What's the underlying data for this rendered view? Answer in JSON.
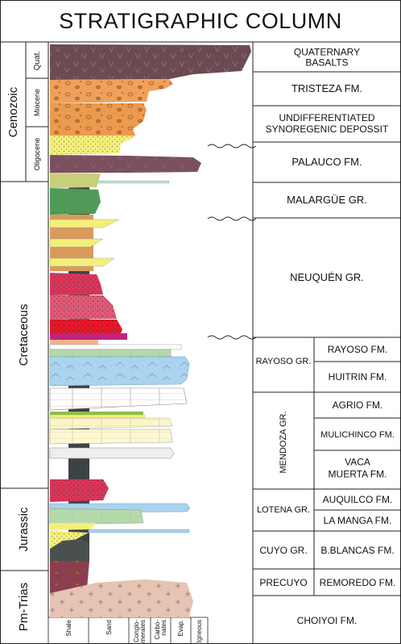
{
  "title": "STRATIGRAPHIC COLUMN",
  "eras": {
    "cenozoic": "Cenozoic",
    "cretaceous": "Cretaceous",
    "jurassic": "Jurassic",
    "pmtrias": "Pm-Trias"
  },
  "epochs": {
    "quat": "Quat.",
    "miocene": "Miocene",
    "oligocene": "Oligocene"
  },
  "lithology_legend": [
    "Shale",
    "Sand",
    "Conglo-\nmerates",
    "Carbo-\nnates",
    "Evap.",
    "Igneous"
  ],
  "groups": {
    "rayoso": "RAYOSO GR.",
    "mendoza": "MENDOZA GR.",
    "lotena": "LOTENA GR.",
    "cuyo": "CUYO GR.",
    "precuyo": "PRECUYO"
  },
  "formations": {
    "quaternary": "QUATERNARY\nBASALTS",
    "tristeza": "TRISTEZA FM.",
    "undiff": "UNDIFFERENTIATED\nSYNOREGENIC DEPOSSIT",
    "palauco": "PALAUCO FM.",
    "malargue": "MALARGÜE GR.",
    "neuquen": "NEUQUÉN GR.",
    "rayoso_fm": "RAYOSO FM.",
    "huitrin": "HUITRIN FM.",
    "agrio": "AGRIO FM.",
    "mulichinco": "MULICHINCO FM.",
    "vaca": "VACA\nMUERTA FM.",
    "auquilco": "AUQUILCO FM.",
    "lamanga": "LA MANGA FM.",
    "bblancas": "B.BLANCAS FM.",
    "remoredo": "REMOREDO FM.",
    "choiyoi": "CHOIYOI FM."
  },
  "colors": {
    "basalt": "#6b4a52",
    "orange": "#f0a05a",
    "yellow": "#f4ef7a",
    "green": "#b5d9a8",
    "blue": "#a9d3ee",
    "red": "#d9365a",
    "shale": "#3d4344"
  }
}
